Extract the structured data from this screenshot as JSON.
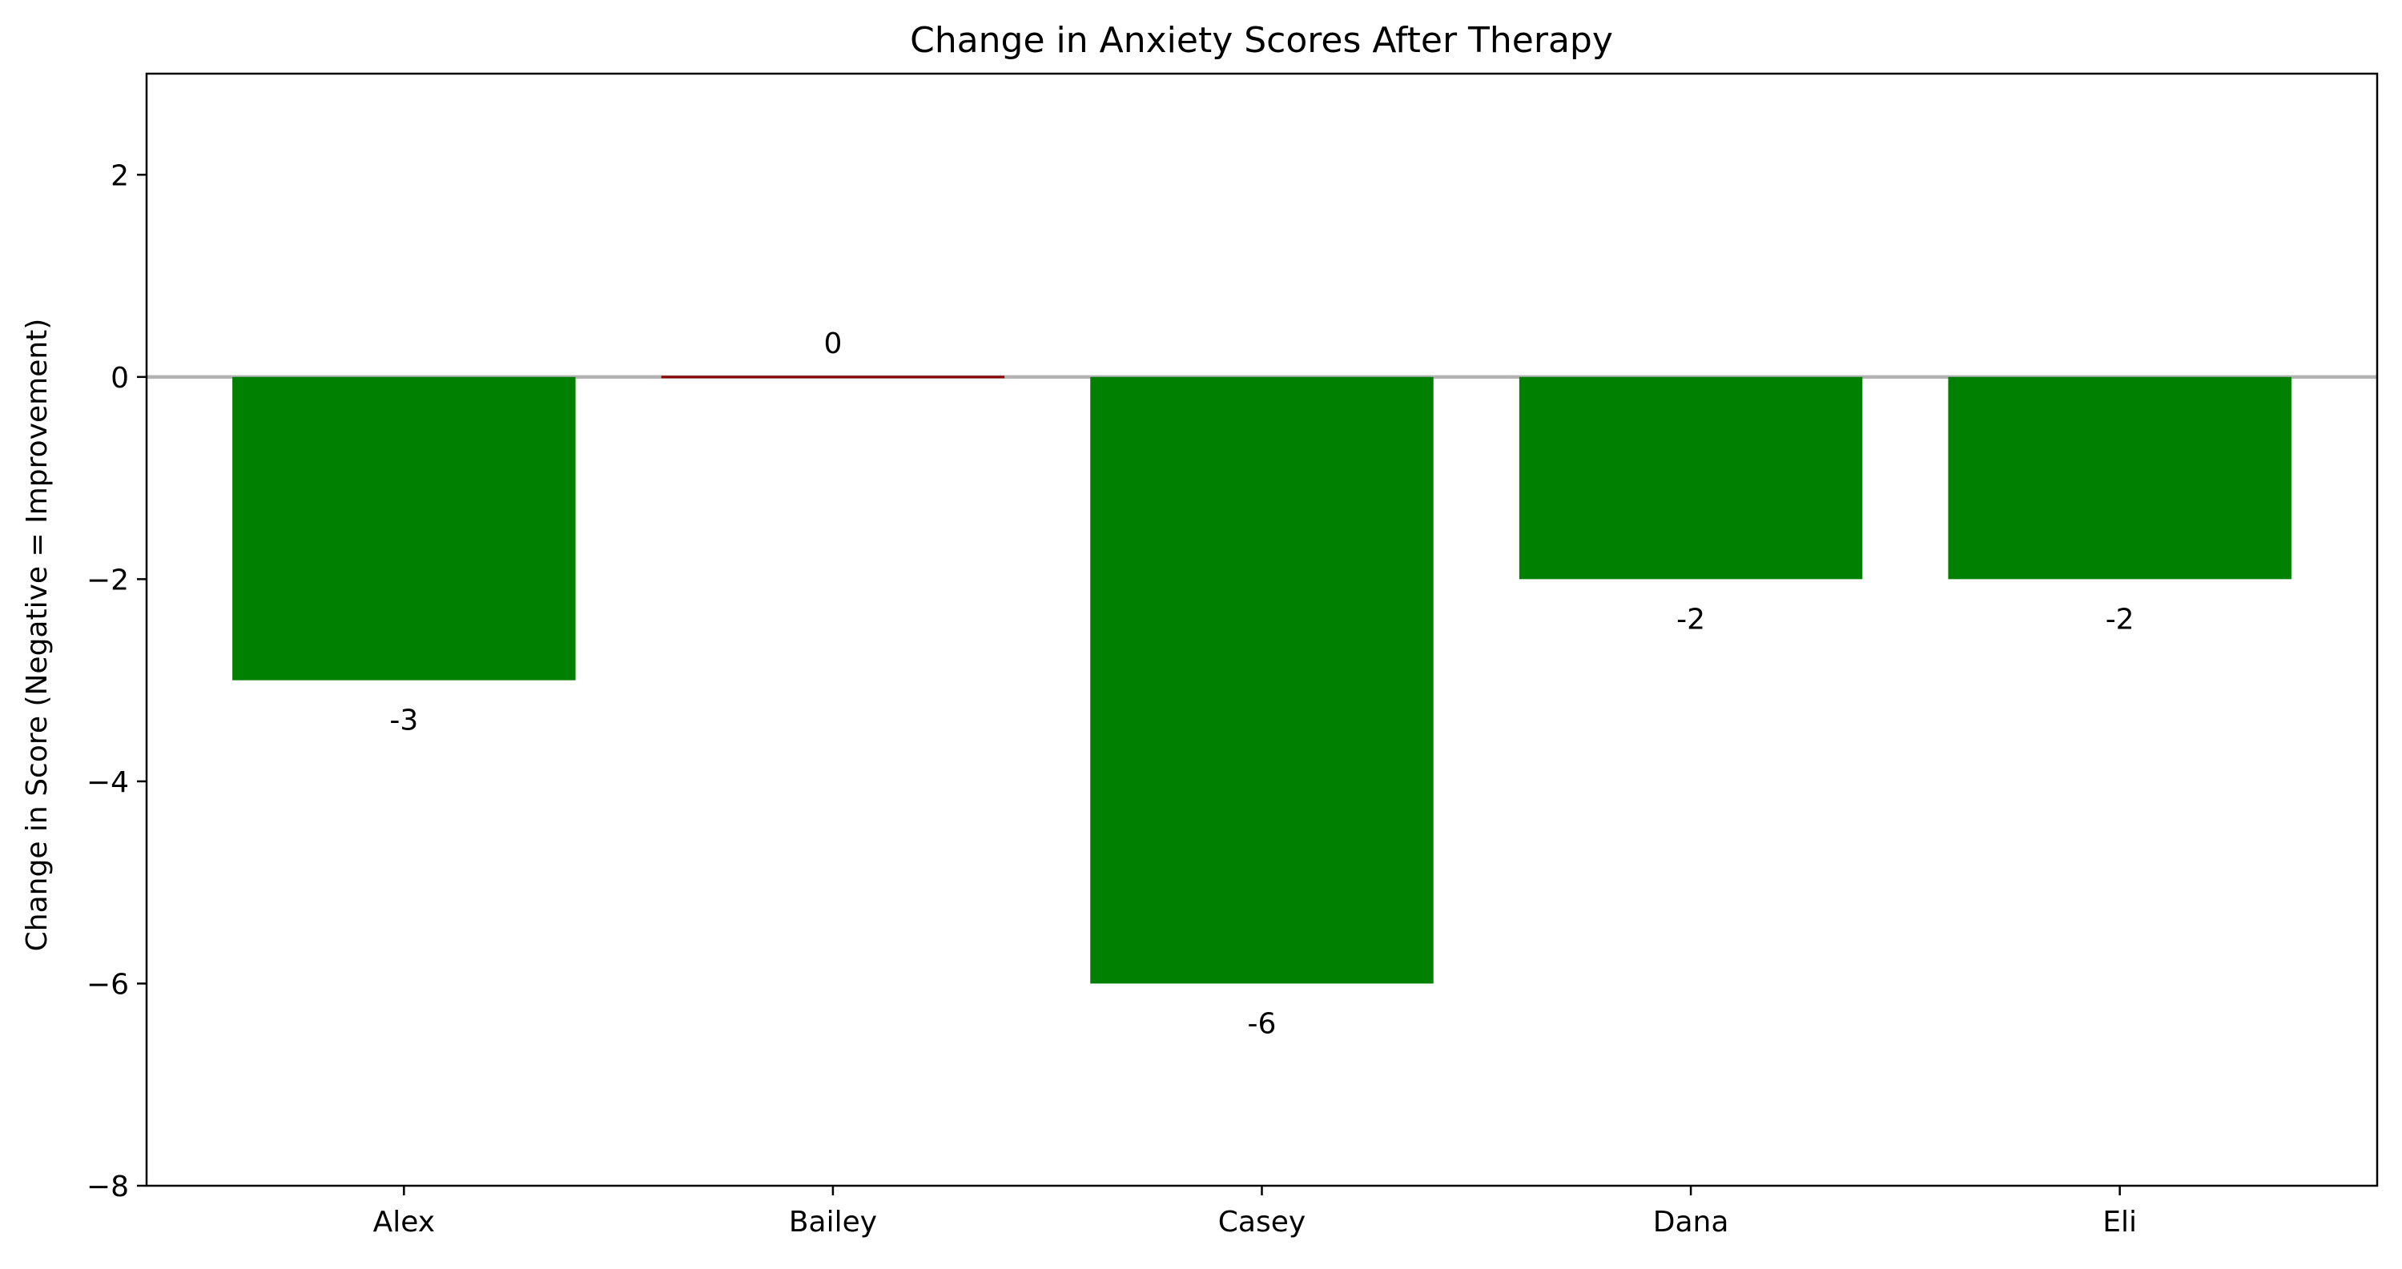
{
  "chart_data": {
    "type": "bar",
    "title": "Change in Anxiety Scores After Therapy",
    "xlabel": "",
    "ylabel": "Change in Score (Negative = Improvement)",
    "categories": [
      "Alex",
      "Bailey",
      "Casey",
      "Dana",
      "Eli"
    ],
    "values": [
      -3,
      0,
      -6,
      -2,
      -2
    ],
    "data_labels": [
      "-3",
      "0",
      "-6",
      "-2",
      "-2"
    ],
    "ylim": [
      -8,
      3
    ],
    "yticks": [
      2,
      0,
      -2,
      -4,
      -6,
      -8
    ],
    "ytick_labels": [
      "2",
      "0",
      "−2",
      "−4",
      "−6",
      "−8"
    ],
    "grid": false,
    "legend": "none",
    "colors": {
      "negative": "#008000",
      "non_negative": "#8b0000",
      "zero_line": "#b3b3b3",
      "axes": "#000000"
    }
  }
}
